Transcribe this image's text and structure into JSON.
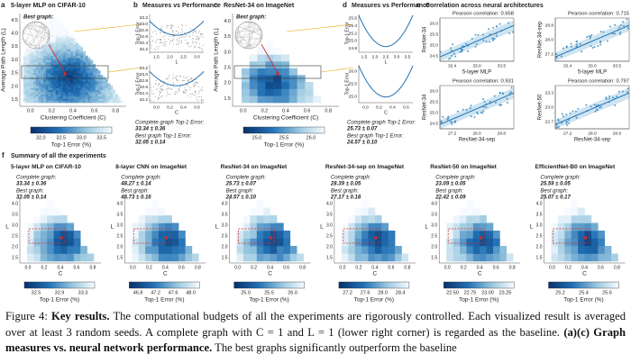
{
  "panels": {
    "a": {
      "label": "a",
      "title": "5-layer MLP on CIFAR-10",
      "best_graph": "Best graph:",
      "ylabel": "Average Path Length (L)",
      "xlabel": "Clustering Coefficient (C)",
      "yticks": [
        "4.5",
        "4.0",
        "3.5",
        "3.0",
        "2.5",
        "2.0",
        "1.5"
      ],
      "xticks": [
        "0.0",
        "0.2",
        "0.4",
        "0.6",
        "0.8"
      ],
      "colorbar_ticks": [
        "32.0",
        "32.5",
        "33.0",
        "33.5"
      ],
      "colorbar_label": "Top-1 Error (%)",
      "complete_text": "Complete graph Top-1 Error:",
      "complete_value": "33.34 ± 0.36",
      "best_text": "Best graph Top-1 Error:",
      "best_value": "32.05 ± 0.14"
    },
    "b": {
      "label": "b",
      "title": "Measures vs Performance",
      "top": {
        "ylabel": "Top-1 Error",
        "yticks": [
          "33.2",
          "33.0",
          "32.8",
          "32.6",
          "32.4",
          "32.2"
        ],
        "xticks": [
          "1.5",
          "2.0",
          "2.5",
          "3.0"
        ],
        "xlabel": "L"
      },
      "bottom": {
        "ylabel": "Top-1 Error",
        "yticks": [
          "33.2",
          "33.0",
          "32.8",
          "32.6",
          "32.4",
          "32.2"
        ],
        "xticks": [
          "0.0",
          "0.2",
          "0.4",
          "0.6"
        ],
        "xlabel": "C"
      }
    },
    "c": {
      "label": "c",
      "title": "ResNet-34 on ImageNet",
      "best_graph": "Best graph:",
      "ylabel": "Average Path Length (L)",
      "xlabel": "Clustering Coefficient (C)",
      "yticks": [
        "4.0",
        "3.5",
        "3.0",
        "2.5",
        "2.0",
        "1.5"
      ],
      "xticks": [
        "0.0",
        "0.2",
        "0.4",
        "0.6",
        "0.8"
      ],
      "colorbar_ticks": [
        "25.0",
        "25.5",
        "26.0"
      ],
      "colorbar_label": "Top-1 Error (%)",
      "complete_text": "Complete graph Top-1 Error:",
      "complete_value": "25.73 ± 0.07",
      "best_text": "Best graph Top-1 Error:",
      "best_value": "24.57 ± 0.10"
    },
    "d": {
      "label": "d",
      "title": "Measures vs Performance",
      "top": {
        "ylabel": "Top-1 Error",
        "yticks": [
          "25.6",
          "25.4",
          "25.2",
          "25.0",
          "24.8"
        ],
        "xticks": [
          "1.5",
          "2.0",
          "2.5",
          "3.0",
          "3.5"
        ],
        "xlabel": "L"
      },
      "bottom": {
        "ylabel": "Top-1 Error",
        "yticks": [
          "26.0",
          "25.5",
          "25.0"
        ],
        "xticks": [
          "0.0",
          "0.2",
          "0.4",
          "0.6"
        ],
        "xlabel": "C"
      }
    },
    "e": {
      "label": "e",
      "title": "Correlation across neural architectures",
      "plots": [
        {
          "pearson": "Pearson correlation: 0.658",
          "xlabel": "5-layer MLP",
          "ylabel": "ResNet-34",
          "xticks": [
            "32.4",
            "33.0",
            "33.5"
          ],
          "yticks": [
            "26.0",
            "25.5",
            "25.0",
            "24.5"
          ]
        },
        {
          "pearson": "Pearson correlation: 0.715",
          "xlabel": "5-layer MLP",
          "ylabel": "ResNet-34-sep",
          "xticks": [
            "32.4",
            "33.0",
            "33.5"
          ],
          "yticks": [
            "28.8",
            "28.0",
            "27.2"
          ]
        },
        {
          "pearson": "Pearson correlation: 0.931",
          "xlabel": "ResNet-34-sep",
          "ylabel": "ResNet-34",
          "xticks": [
            "27.2",
            "28.0",
            "28.8"
          ],
          "yticks": [
            "26.0",
            "25.5",
            "25.0",
            "24.5"
          ]
        },
        {
          "pearson": "Pearson correlation: 0.797",
          "xlabel": "ResNet-34-sep",
          "ylabel": "ResNet-50",
          "xticks": [
            "27.2",
            "28.0",
            "28.8"
          ],
          "yticks": [
            "23.3",
            "23.0",
            "22.7"
          ]
        }
      ]
    }
  },
  "summary": {
    "label": "f",
    "title": "Summary of all the experiments",
    "common": {
      "complete_text": "Complete graph:",
      "best_text": "Best graph:",
      "ylabel": "L",
      "xlabel": "C",
      "yticks": [
        "4.0",
        "3.5",
        "3.0",
        "2.5",
        "2.0",
        "1.5"
      ],
      "xticks": [
        "0.0",
        "0.2",
        "0.4",
        "0.6",
        "0.8"
      ],
      "colorbar_label": "Top-1 Error (%)"
    },
    "plots": [
      {
        "title": "5-layer MLP on CIFAR-10",
        "complete_value": "33.34 ± 0.36",
        "best_value": "32.05 ± 0.14",
        "colorbar_ticks": [
          "32.5",
          "32.9",
          "33.3"
        ]
      },
      {
        "title": "8-layer CNN on ImageNet",
        "complete_value": "48.27 ± 0.14",
        "best_value": "46.73 ± 0.16",
        "colorbar_ticks": [
          "46.8",
          "47.2",
          "47.6",
          "48.0"
        ]
      },
      {
        "title": "ResNet-34 on ImageNet",
        "complete_value": "25.73 ± 0.07",
        "best_value": "24.57 ± 0.10",
        "colorbar_ticks": [
          "25.0",
          "25.5",
          "26.0"
        ]
      },
      {
        "title": "ResNet-34-sep on ImageNet",
        "complete_value": "28.39 ± 0.05",
        "best_value": "27.17 ± 0.18",
        "colorbar_ticks": [
          "27.2",
          "27.6",
          "28.0",
          "28.4"
        ]
      },
      {
        "title": "ResNet-50 on ImageNet",
        "complete_value": "23.09 ± 0.05",
        "best_value": "22.42 ± 0.09",
        "colorbar_ticks": [
          "22.50",
          "22.75",
          "23.00",
          "23.25"
        ]
      },
      {
        "title": "EfficientNet-B0 on ImageNet",
        "complete_value": "25.59 ± 0.05",
        "best_value": "25.07 ± 0.17",
        "colorbar_ticks": [
          "25.2",
          "25.4",
          "25.6"
        ]
      }
    ]
  },
  "caption": {
    "figure": "Figure 4:",
    "heading": "Key results.",
    "text1": "The computational budgets of all the experiments are rigorously controlled. Each visualized result is averaged over at least 3 random seeds. A complete graph with C = 1 and L = 1 (lower right corner) is regarded as the baseline.",
    "heading2": "(a)(c) Graph measures vs. neural network performance.",
    "text2": "The best graphs significantly outperform the baseline"
  }
}
